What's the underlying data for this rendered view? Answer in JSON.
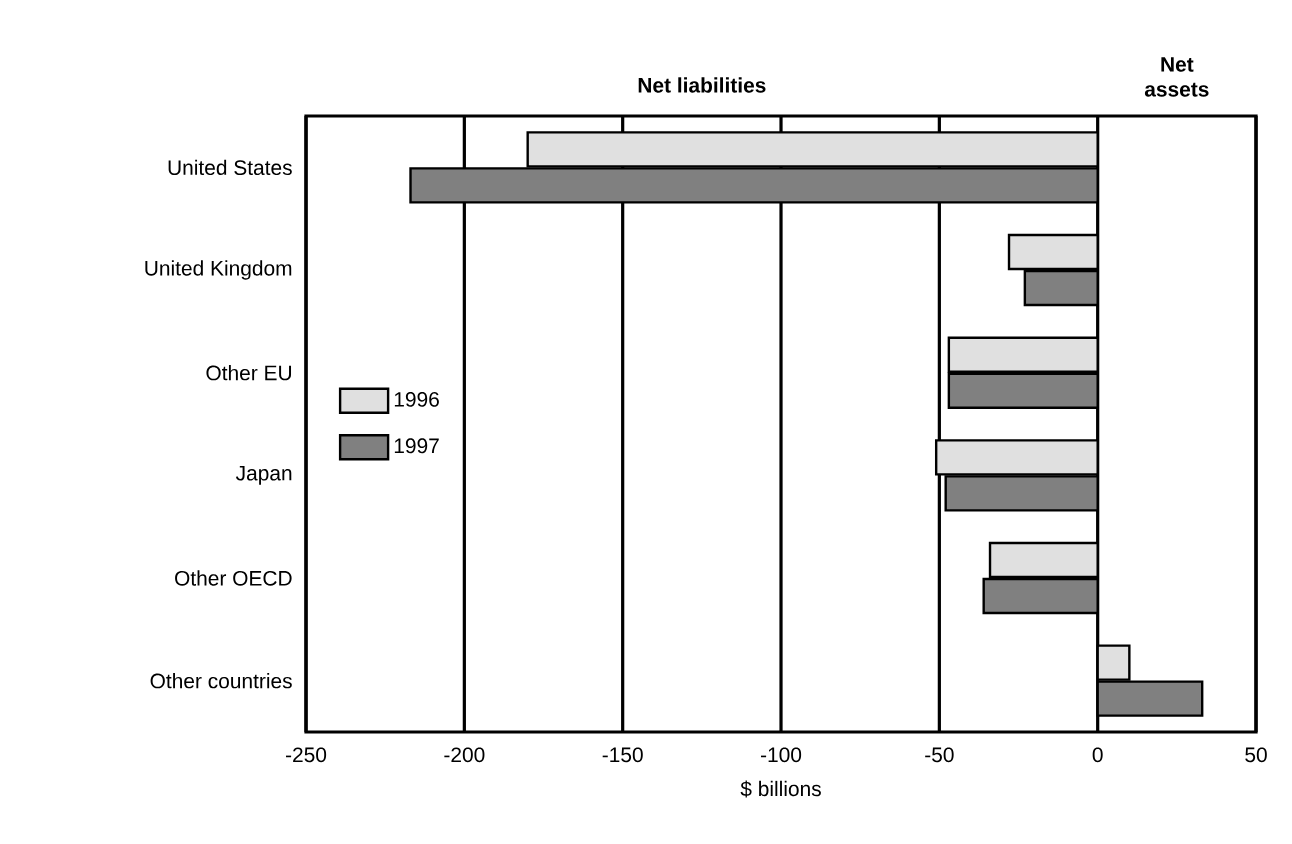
{
  "chart_data": {
    "type": "bar",
    "orientation": "horizontal",
    "categories": [
      "United States",
      "United Kingdom",
      "Other EU",
      "Japan",
      "Other OECD",
      "Other countries"
    ],
    "series": [
      {
        "name": "1996",
        "color": "#e0e0e0",
        "values": [
          -180,
          -28,
          -47,
          -51,
          -34,
          10
        ]
      },
      {
        "name": "1997",
        "color": "#808080",
        "values": [
          -217,
          -23,
          -47,
          -48,
          -36,
          33
        ]
      }
    ],
    "xlabel": "$ billions",
    "xlim": [
      -250,
      50
    ],
    "xticks": [
      -250,
      -200,
      -150,
      -100,
      -50,
      0,
      50
    ],
    "grid": "x",
    "legend": "left",
    "annotations": [
      "Net liabilities",
      "Net assets"
    ]
  }
}
